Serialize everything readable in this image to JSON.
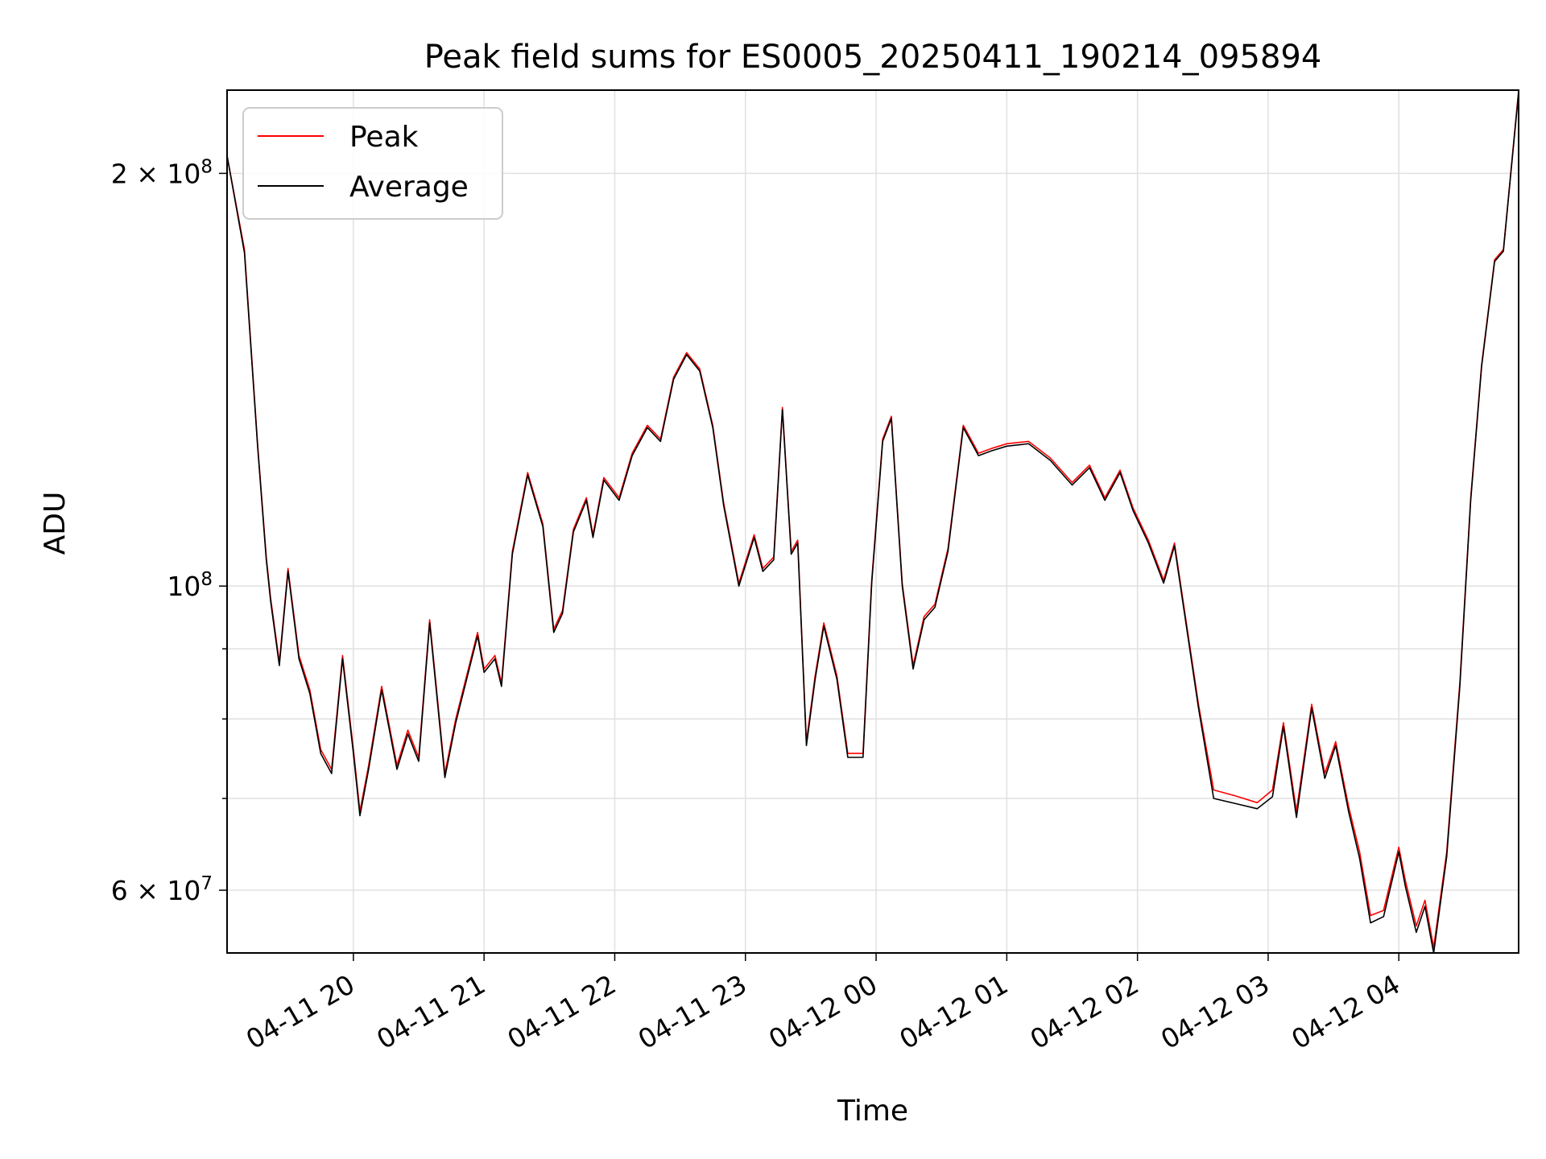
{
  "chart_data": {
    "type": "line",
    "title": "Peak field sums for ES0005_20250411_190214_095894",
    "xlabel": "Time",
    "ylabel": "ADU",
    "y_scale": "log",
    "ylim": [
      54000000,
      230000000
    ],
    "xlim": [
      "2025-04-11 19:02",
      "2025-04-12 04:55"
    ],
    "grid": true,
    "legend": {
      "position": "top-left",
      "entries": [
        "Peak",
        "Average"
      ]
    },
    "x_ticks": [
      {
        "label": "04-11 20",
        "value": "2025-04-11 20:00"
      },
      {
        "label": "04-11 21",
        "value": "2025-04-11 21:00"
      },
      {
        "label": "04-11 22",
        "value": "2025-04-11 22:00"
      },
      {
        "label": "04-11 23",
        "value": "2025-04-11 23:00"
      },
      {
        "label": "04-12 00",
        "value": "2025-04-12 00:00"
      },
      {
        "label": "04-12 01",
        "value": "2025-04-12 01:00"
      },
      {
        "label": "04-12 02",
        "value": "2025-04-12 02:00"
      },
      {
        "label": "04-12 03",
        "value": "2025-04-12 03:00"
      },
      {
        "label": "04-12 04",
        "value": "2025-04-12 04:00"
      }
    ],
    "y_ticks": [
      {
        "label": "6 × 10⁷",
        "base": "6 × 10",
        "exp": "7",
        "value": 60000000
      },
      {
        "label": "10⁸",
        "base": "10",
        "exp": "8",
        "value": 100000000
      },
      {
        "label": "2 × 10⁸",
        "base": "2 × 10",
        "exp": "8",
        "value": 200000000
      }
    ],
    "y_minor_ticks": [
      70000000,
      80000000,
      90000000
    ],
    "x": [
      "2025-04-11 19:02",
      "2025-04-11 19:10",
      "2025-04-11 19:16",
      "2025-04-11 19:20",
      "2025-04-11 19:22",
      "2025-04-11 19:26",
      "2025-04-11 19:30",
      "2025-04-11 19:35",
      "2025-04-11 19:40",
      "2025-04-11 19:45",
      "2025-04-11 19:50",
      "2025-04-11 19:55",
      "2025-04-11 20:00",
      "2025-04-11 20:03",
      "2025-04-11 20:07",
      "2025-04-11 20:13",
      "2025-04-11 20:20",
      "2025-04-11 20:25",
      "2025-04-11 20:30",
      "2025-04-11 20:35",
      "2025-04-11 20:42",
      "2025-04-11 20:47",
      "2025-04-11 20:52",
      "2025-04-11 20:57",
      "2025-04-11 21:00",
      "2025-04-11 21:05",
      "2025-04-11 21:08",
      "2025-04-11 21:13",
      "2025-04-11 21:20",
      "2025-04-11 21:27",
      "2025-04-11 21:32",
      "2025-04-11 21:36",
      "2025-04-11 21:41",
      "2025-04-11 21:47",
      "2025-04-11 21:50",
      "2025-04-11 21:55",
      "2025-04-11 22:02",
      "2025-04-11 22:08",
      "2025-04-11 22:15",
      "2025-04-11 22:21",
      "2025-04-11 22:27",
      "2025-04-11 22:33",
      "2025-04-11 22:39",
      "2025-04-11 22:45",
      "2025-04-11 22:50",
      "2025-04-11 22:57",
      "2025-04-11 23:04",
      "2025-04-11 23:08",
      "2025-04-11 23:13",
      "2025-04-11 23:17",
      "2025-04-11 23:21",
      "2025-04-11 23:24",
      "2025-04-11 23:28",
      "2025-04-11 23:32",
      "2025-04-11 23:36",
      "2025-04-11 23:42",
      "2025-04-11 23:47",
      "2025-04-11 23:54",
      "2025-04-11 23:58",
      "2025-04-12 00:03",
      "2025-04-12 00:07",
      "2025-04-12 00:12",
      "2025-04-12 00:17",
      "2025-04-12 00:22",
      "2025-04-12 00:27",
      "2025-04-12 00:33",
      "2025-04-12 00:40",
      "2025-04-12 00:47",
      "2025-04-12 00:53",
      "2025-04-12 01:00",
      "2025-04-12 01:10",
      "2025-04-12 01:20",
      "2025-04-12 01:30",
      "2025-04-12 01:38",
      "2025-04-12 01:45",
      "2025-04-12 01:52",
      "2025-04-12 01:58",
      "2025-04-12 02:05",
      "2025-04-12 02:12",
      "2025-04-12 02:17",
      "2025-04-12 02:22",
      "2025-04-12 02:28",
      "2025-04-12 02:35",
      "2025-04-12 02:45",
      "2025-04-12 02:55",
      "2025-04-12 03:02",
      "2025-04-12 03:07",
      "2025-04-12 03:13",
      "2025-04-12 03:20",
      "2025-04-12 03:26",
      "2025-04-12 03:31",
      "2025-04-12 03:37",
      "2025-04-12 03:42",
      "2025-04-12 03:47",
      "2025-04-12 03:53",
      "2025-04-12 04:00",
      "2025-04-12 04:03",
      "2025-04-12 04:08",
      "2025-04-12 04:12",
      "2025-04-12 04:16",
      "2025-04-12 04:22",
      "2025-04-12 04:28",
      "2025-04-12 04:33",
      "2025-04-12 04:38",
      "2025-04-12 04:44",
      "2025-04-12 04:48",
      "2025-04-12 04:52",
      "2025-04-12 04:55"
    ],
    "series": [
      {
        "name": "Peak",
        "color": "#ff0000",
        "values": [
          206000000,
          176000000,
          127000000,
          105000000,
          98000000,
          88000000,
          103000000,
          89000000,
          84000000,
          76000000,
          73500000,
          89000000,
          76000000,
          68500000,
          74000000,
          84500000,
          74000000,
          78500000,
          75000000,
          94500000,
          73000000,
          80000000,
          86000000,
          92500000,
          87000000,
          89000000,
          85000000,
          106000000,
          121000000,
          111000000,
          93000000,
          96000000,
          110000000,
          116000000,
          109000000,
          120000000,
          116000000,
          125000000,
          131000000,
          128000000,
          142000000,
          148000000,
          144000000,
          131000000,
          115000000,
          100500000,
          109000000,
          103000000,
          105000000,
          135000000,
          106000000,
          108000000,
          77000000,
          86000000,
          94000000,
          86000000,
          75500000,
          75500000,
          101000000,
          128000000,
          133000000,
          100500000,
          87500000,
          95000000,
          97000000,
          106500000,
          131000000,
          125000000,
          126000000,
          127000000,
          127500000,
          124000000,
          119000000,
          122500000,
          116000000,
          121500000,
          114000000,
          108000000,
          101000000,
          107500000,
          95000000,
          82000000,
          71000000,
          70300000,
          69500000,
          71000000,
          79500000,
          68500000,
          82000000,
          73000000,
          77000000,
          69000000,
          64000000,
          57500000,
          58000000,
          64500000,
          61000000,
          56500000,
          59000000,
          54500000,
          64000000,
          85000000,
          116000000,
          145000000,
          173000000,
          176000000,
          205000000,
          230000000
        ]
      },
      {
        "name": "Average",
        "color": "#000000",
        "values": [
          206000000,
          175000000,
          126500000,
          104500000,
          97500000,
          87500000,
          102500000,
          88500000,
          83500000,
          75500000,
          73000000,
          88500000,
          75500000,
          68000000,
          73500000,
          84000000,
          73500000,
          78000000,
          74500000,
          94000000,
          72500000,
          79500000,
          85500000,
          92000000,
          86500000,
          88500000,
          84500000,
          105500000,
          120500000,
          110500000,
          92500000,
          95500000,
          109500000,
          115500000,
          108500000,
          119500000,
          115500000,
          124500000,
          130500000,
          127500000,
          141500000,
          147500000,
          143500000,
          130500000,
          114500000,
          100000000,
          108500000,
          102500000,
          104500000,
          134500000,
          105500000,
          107500000,
          76500000,
          85500000,
          93500000,
          85500000,
          75000000,
          75000000,
          100500000,
          127500000,
          132500000,
          100000000,
          87000000,
          94500000,
          96500000,
          106000000,
          130500000,
          124500000,
          125500000,
          126500000,
          127000000,
          123500000,
          118500000,
          122000000,
          115500000,
          121000000,
          113500000,
          107500000,
          100500000,
          107000000,
          94500000,
          81500000,
          70000000,
          69400000,
          68800000,
          70200000,
          79000000,
          67800000,
          81500000,
          72400000,
          76500000,
          68400000,
          63300000,
          56800000,
          57400000,
          64000000,
          60400000,
          55900000,
          58400000,
          54000000,
          63500000,
          84500000,
          115500000,
          144500000,
          172500000,
          175500000,
          204500000,
          229000000
        ]
      }
    ]
  }
}
